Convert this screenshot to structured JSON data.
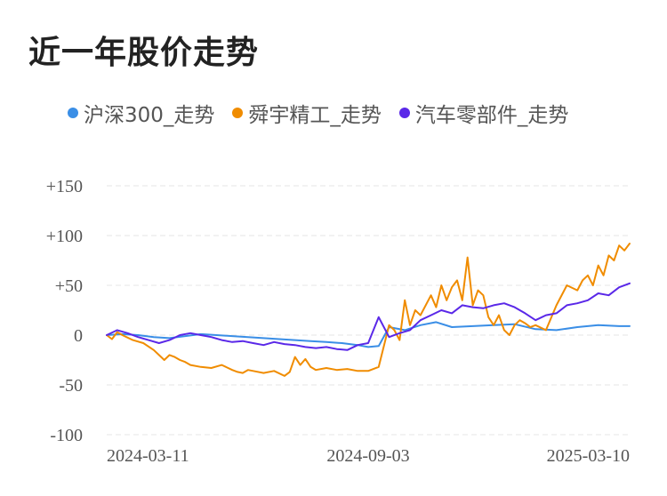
{
  "title": "近一年股价走势",
  "colors": {
    "hs300": "#3a8ee6",
    "shunyu": "#f08c00",
    "auto_parts": "#5a28e8",
    "grid": "#e6e6e6"
  },
  "chart_data": {
    "type": "line",
    "title": "近一年股价走势",
    "ylim": [
      -100,
      150
    ],
    "y_ticks": [
      "+150",
      "+100",
      "+50",
      "0",
      "-50",
      "-100"
    ],
    "y_tick_values": [
      150,
      100,
      50,
      0,
      -50,
      -100
    ],
    "x_ticks": [
      "2024-03-11",
      "2024-09-03",
      "2025-03-10"
    ],
    "x_tick_positions": [
      0,
      0.5,
      1
    ],
    "grid": true,
    "legend_position": "top",
    "series": [
      {
        "name": "沪深300_走势",
        "color": "#3a8ee6",
        "x": [
          0,
          0.03,
          0.06,
          0.09,
          0.12,
          0.15,
          0.18,
          0.21,
          0.24,
          0.27,
          0.3,
          0.33,
          0.36,
          0.39,
          0.42,
          0.45,
          0.48,
          0.5,
          0.52,
          0.54,
          0.57,
          0.6,
          0.63,
          0.66,
          0.7,
          0.74,
          0.78,
          0.82,
          0.86,
          0.9,
          0.94,
          0.98,
          1
        ],
        "values": [
          0,
          1,
          0,
          -2,
          -3,
          -1,
          1,
          0,
          -1,
          -2,
          -3,
          -4,
          -5,
          -6,
          -7,
          -8,
          -10,
          -12,
          -11,
          8,
          5,
          10,
          13,
          8,
          9,
          10,
          11,
          6,
          5,
          8,
          10,
          9,
          9
        ]
      },
      {
        "name": "舜宇精工_走势",
        "color": "#f08c00",
        "x": [
          0,
          0.01,
          0.02,
          0.03,
          0.05,
          0.07,
          0.09,
          0.1,
          0.11,
          0.12,
          0.13,
          0.14,
          0.15,
          0.16,
          0.18,
          0.2,
          0.22,
          0.24,
          0.25,
          0.26,
          0.27,
          0.28,
          0.3,
          0.32,
          0.34,
          0.35,
          0.36,
          0.37,
          0.38,
          0.39,
          0.4,
          0.42,
          0.44,
          0.46,
          0.48,
          0.5,
          0.52,
          0.54,
          0.55,
          0.56,
          0.57,
          0.58,
          0.59,
          0.6,
          0.62,
          0.63,
          0.64,
          0.65,
          0.66,
          0.67,
          0.68,
          0.69,
          0.7,
          0.71,
          0.72,
          0.73,
          0.74,
          0.75,
          0.76,
          0.77,
          0.78,
          0.79,
          0.8,
          0.81,
          0.82,
          0.84,
          0.86,
          0.88,
          0.9,
          0.91,
          0.92,
          0.93,
          0.94,
          0.95,
          0.96,
          0.97,
          0.98,
          0.99,
          1
        ],
        "values": [
          0,
          -4,
          3,
          0,
          -5,
          -8,
          -15,
          -20,
          -25,
          -20,
          -22,
          -25,
          -27,
          -30,
          -32,
          -33,
          -30,
          -35,
          -37,
          -38,
          -35,
          -36,
          -38,
          -36,
          -41,
          -37,
          -22,
          -30,
          -24,
          -32,
          -35,
          -33,
          -35,
          -34,
          -36,
          -36,
          -32,
          10,
          5,
          -5,
          35,
          10,
          25,
          20,
          40,
          28,
          50,
          35,
          48,
          55,
          35,
          78,
          30,
          45,
          40,
          18,
          10,
          20,
          5,
          0,
          10,
          15,
          12,
          8,
          10,
          5,
          30,
          50,
          45,
          55,
          60,
          50,
          70,
          60,
          80,
          75,
          90,
          85,
          92
        ]
      },
      {
        "name": "汽车零部件_走势",
        "color": "#5a28e8",
        "x": [
          0,
          0.02,
          0.04,
          0.06,
          0.08,
          0.1,
          0.12,
          0.14,
          0.16,
          0.18,
          0.2,
          0.22,
          0.24,
          0.26,
          0.28,
          0.3,
          0.32,
          0.34,
          0.36,
          0.38,
          0.4,
          0.42,
          0.44,
          0.46,
          0.48,
          0.5,
          0.52,
          0.54,
          0.56,
          0.58,
          0.6,
          0.62,
          0.64,
          0.66,
          0.68,
          0.7,
          0.72,
          0.74,
          0.76,
          0.78,
          0.8,
          0.82,
          0.84,
          0.86,
          0.88,
          0.9,
          0.92,
          0.94,
          0.96,
          0.98,
          1
        ],
        "values": [
          0,
          5,
          2,
          -2,
          -5,
          -8,
          -5,
          0,
          2,
          0,
          -2,
          -5,
          -7,
          -6,
          -8,
          -10,
          -7,
          -9,
          -10,
          -12,
          -13,
          -12,
          -14,
          -15,
          -10,
          -8,
          18,
          -2,
          2,
          5,
          15,
          20,
          25,
          22,
          30,
          28,
          27,
          30,
          32,
          28,
          22,
          15,
          20,
          22,
          30,
          32,
          35,
          42,
          40,
          48,
          52
        ]
      }
    ]
  }
}
